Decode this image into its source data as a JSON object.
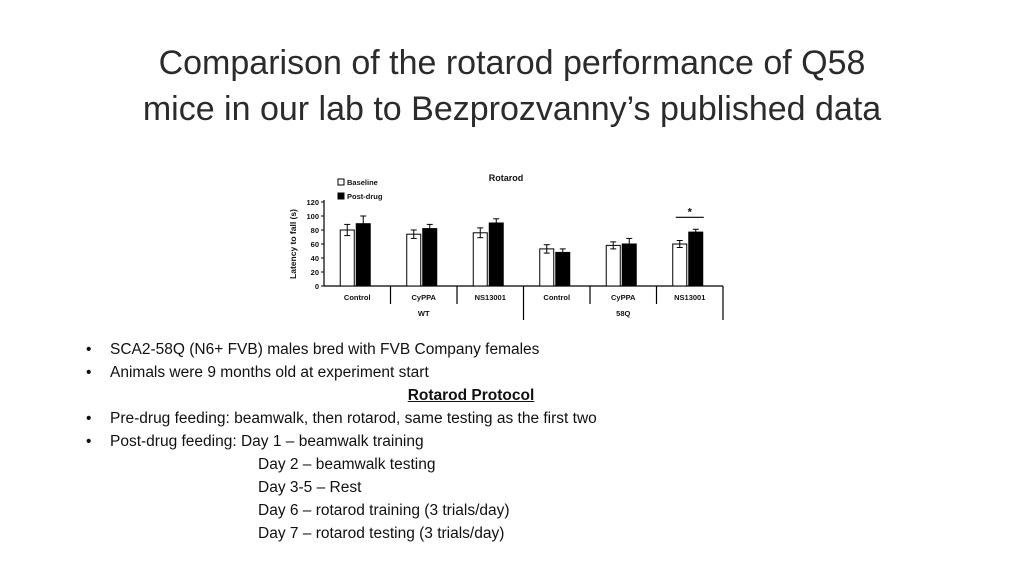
{
  "slide": {
    "title_line1": "Comparison of the rotarod performance of Q58",
    "title_line2": "mice in our lab to Bezprozvanny’s published data"
  },
  "chart_data": {
    "type": "bar",
    "title": "Rotarod",
    "ylabel": "Latency to fall (s)",
    "xlabel": "",
    "ylim": [
      0,
      120
    ],
    "yticks": [
      0,
      20,
      40,
      60,
      80,
      100,
      120
    ],
    "categories": [
      "Control",
      "CyPPA",
      "NS13001",
      "Control",
      "CyPPA",
      "NS13001"
    ],
    "groups": [
      {
        "label": "WT",
        "categories": [
          "Control",
          "CyPPA",
          "NS13001"
        ]
      },
      {
        "label": "58Q",
        "categories": [
          "Control",
          "CyPPA",
          "NS13001"
        ]
      }
    ],
    "series": [
      {
        "name": "Baseline",
        "color": "#ffffff",
        "values": [
          80,
          74,
          76,
          53,
          58,
          60
        ],
        "errors": [
          8,
          6,
          7,
          6,
          5,
          5
        ]
      },
      {
        "name": "Post-drug",
        "color": "#000000",
        "values": [
          89,
          82,
          90,
          48,
          60,
          77
        ],
        "errors": [
          11,
          6,
          6,
          5,
          8,
          4
        ]
      }
    ],
    "annotations": [
      {
        "text": "*",
        "category_index": 5
      }
    ],
    "legend": "top-left"
  },
  "bullets": {
    "b1": "SCA2-58Q (N6+ FVB) males bred with FVB Company females",
    "b2": "Animals were 9 months old at experiment start",
    "protocol_heading": "Rotarod Protocol",
    "b3": "Pre-drug feeding: beamwalk, then rotarod, same testing as the first two",
    "b4": "Post-drug feeding: Day 1 – beamwalk training",
    "day2": "Day 2 – beamwalk testing",
    "day35": "Day 3-5 – Rest",
    "day6": "Day 6 – rotarod training (3 trials/day)",
    "day7": "Day 7 – rotarod testing (3 trials/day)",
    "bullet_char": "•"
  }
}
